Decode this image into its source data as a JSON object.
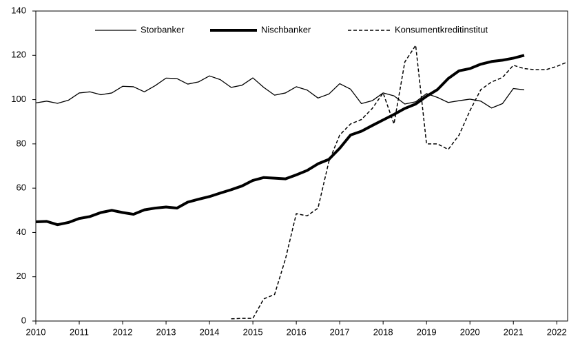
{
  "chart_data": {
    "type": "line",
    "x": [
      2010,
      2010.25,
      2010.5,
      2010.75,
      2011,
      2011.25,
      2011.5,
      2011.75,
      2012,
      2012.25,
      2012.5,
      2012.75,
      2013,
      2013.25,
      2013.5,
      2013.75,
      2014,
      2014.25,
      2014.5,
      2014.75,
      2015,
      2015.25,
      2015.5,
      2015.75,
      2016,
      2016.25,
      2016.5,
      2016.75,
      2017,
      2017.25,
      2017.5,
      2017.75,
      2018,
      2018.25,
      2018.5,
      2018.75,
      2019,
      2019.25,
      2019.5,
      2019.75,
      2020,
      2020.25,
      2020.5,
      2020.75,
      2021,
      2021.25,
      2021.5,
      2021.75,
      2022,
      2022.25
    ],
    "series": [
      {
        "name": "Storbanker",
        "color": "#000000",
        "line_width": 1.3,
        "dash": false,
        "values": [
          98.5,
          99.3,
          98.3,
          99.7,
          103,
          103.5,
          102.2,
          103,
          106,
          105.8,
          103.5,
          106.3,
          109.7,
          109.5,
          107,
          108,
          110.7,
          109,
          105.5,
          106.5,
          109.8,
          105.5,
          102,
          103,
          105.8,
          104.3,
          100.7,
          102.5,
          107.2,
          104.7,
          98.2,
          99.5,
          103,
          101.7,
          98,
          99,
          102.7,
          101,
          98.7,
          99.5,
          100.2,
          99.3,
          96.2,
          98.2,
          105,
          104.4,
          null,
          null,
          null,
          null
        ]
      },
      {
        "name": "Nischbanker",
        "color": "#000000",
        "line_width": 4,
        "dash": false,
        "values": [
          44.8,
          45,
          43.5,
          44.5,
          46.3,
          47.2,
          49,
          50,
          49,
          48.2,
          50.2,
          51,
          51.5,
          51,
          53.7,
          55,
          56.2,
          57.8,
          59.3,
          61,
          63.5,
          64.8,
          64.5,
          64.2,
          66,
          68,
          71,
          73,
          78,
          84,
          85.7,
          88.3,
          90.8,
          93.3,
          96,
          98,
          101.5,
          104.5,
          109.5,
          113,
          114,
          116,
          117.2,
          117.8,
          118.7,
          120,
          null,
          null,
          null,
          null
        ]
      },
      {
        "name": "Konsumentkreditinstitut",
        "color": "#000000",
        "line_width": 1.5,
        "dash": true,
        "values": [
          null,
          null,
          null,
          null,
          null,
          null,
          null,
          null,
          null,
          null,
          null,
          null,
          null,
          null,
          null,
          null,
          null,
          null,
          1,
          1.2,
          1.2,
          10,
          12,
          28,
          48.5,
          47.5,
          51,
          72,
          84,
          89,
          91,
          96,
          103,
          89,
          117,
          124.5,
          80,
          80,
          77.5,
          84,
          95,
          104.5,
          108,
          110,
          115.5,
          114,
          113.5,
          113.5,
          115,
          117
        ]
      }
    ],
    "xlim": [
      2010,
      2022.25
    ],
    "xticks": [
      2010,
      2011,
      2012,
      2013,
      2014,
      2015,
      2016,
      2017,
      2018,
      2019,
      2020,
      2021,
      2022
    ],
    "ylim": [
      0,
      140
    ],
    "yticks": [
      0,
      20,
      40,
      60,
      80,
      100,
      120,
      140
    ],
    "grid": false,
    "legend": "top"
  }
}
